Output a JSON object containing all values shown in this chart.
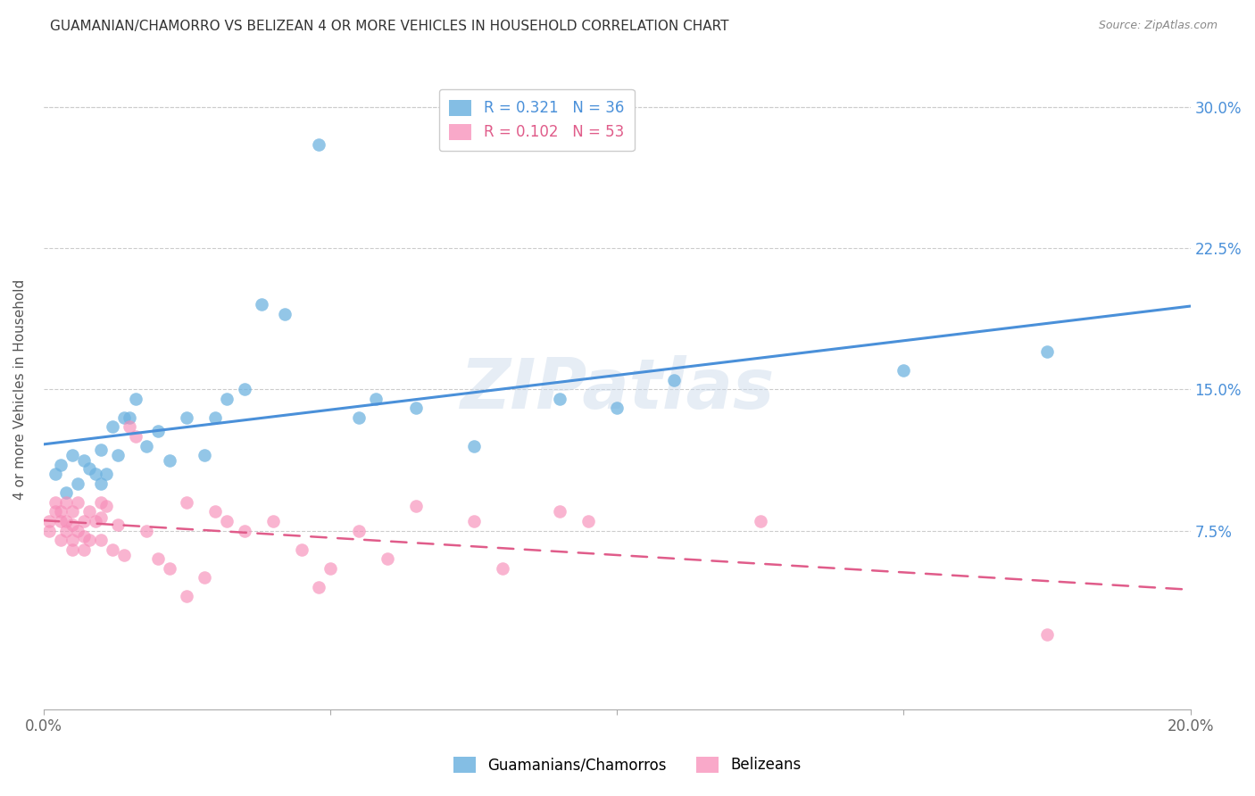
{
  "title": "GUAMANIAN/CHAMORRO VS BELIZEAN 4 OR MORE VEHICLES IN HOUSEHOLD CORRELATION CHART",
  "source": "Source: ZipAtlas.com",
  "ylabel": "4 or more Vehicles in Household",
  "xlim": [
    0.0,
    0.2
  ],
  "ylim": [
    -0.02,
    0.32
  ],
  "plot_ylim": [
    -0.02,
    0.32
  ],
  "legend_label1": "Guamanians/Chamorros",
  "legend_label2": "Belizeans",
  "color_blue": "#6fb3e0",
  "color_pink": "#f78db8",
  "color_line_blue": "#4a90d9",
  "color_line_pink": "#e05c8a",
  "watermark": "ZIPatlas",
  "guamanian_x": [
    0.002,
    0.003,
    0.004,
    0.005,
    0.006,
    0.007,
    0.008,
    0.009,
    0.01,
    0.01,
    0.011,
    0.012,
    0.013,
    0.014,
    0.015,
    0.016,
    0.018,
    0.02,
    0.022,
    0.025,
    0.028,
    0.03,
    0.032,
    0.035,
    0.038,
    0.042,
    0.048,
    0.055,
    0.058,
    0.065,
    0.075,
    0.09,
    0.1,
    0.11,
    0.15,
    0.175
  ],
  "guamanian_y": [
    0.105,
    0.11,
    0.095,
    0.115,
    0.1,
    0.112,
    0.108,
    0.105,
    0.118,
    0.1,
    0.105,
    0.13,
    0.115,
    0.135,
    0.135,
    0.145,
    0.12,
    0.128,
    0.112,
    0.135,
    0.115,
    0.135,
    0.145,
    0.15,
    0.195,
    0.19,
    0.28,
    0.135,
    0.145,
    0.14,
    0.12,
    0.145,
    0.14,
    0.155,
    0.16,
    0.17
  ],
  "belizean_x": [
    0.001,
    0.001,
    0.002,
    0.002,
    0.003,
    0.003,
    0.003,
    0.004,
    0.004,
    0.004,
    0.005,
    0.005,
    0.005,
    0.005,
    0.006,
    0.006,
    0.007,
    0.007,
    0.007,
    0.008,
    0.008,
    0.009,
    0.01,
    0.01,
    0.01,
    0.011,
    0.012,
    0.013,
    0.014,
    0.015,
    0.016,
    0.018,
    0.02,
    0.022,
    0.025,
    0.025,
    0.028,
    0.03,
    0.032,
    0.035,
    0.04,
    0.045,
    0.048,
    0.05,
    0.055,
    0.06,
    0.065,
    0.075,
    0.08,
    0.09,
    0.095,
    0.125,
    0.175
  ],
  "belizean_y": [
    0.075,
    0.08,
    0.085,
    0.09,
    0.085,
    0.08,
    0.07,
    0.09,
    0.08,
    0.075,
    0.085,
    0.07,
    0.078,
    0.065,
    0.09,
    0.075,
    0.08,
    0.065,
    0.072,
    0.085,
    0.07,
    0.08,
    0.09,
    0.082,
    0.07,
    0.088,
    0.065,
    0.078,
    0.062,
    0.13,
    0.125,
    0.075,
    0.06,
    0.055,
    0.09,
    0.04,
    0.05,
    0.085,
    0.08,
    0.075,
    0.08,
    0.065,
    0.045,
    0.055,
    0.075,
    0.06,
    0.088,
    0.08,
    0.055,
    0.085,
    0.08,
    0.08,
    0.02
  ]
}
